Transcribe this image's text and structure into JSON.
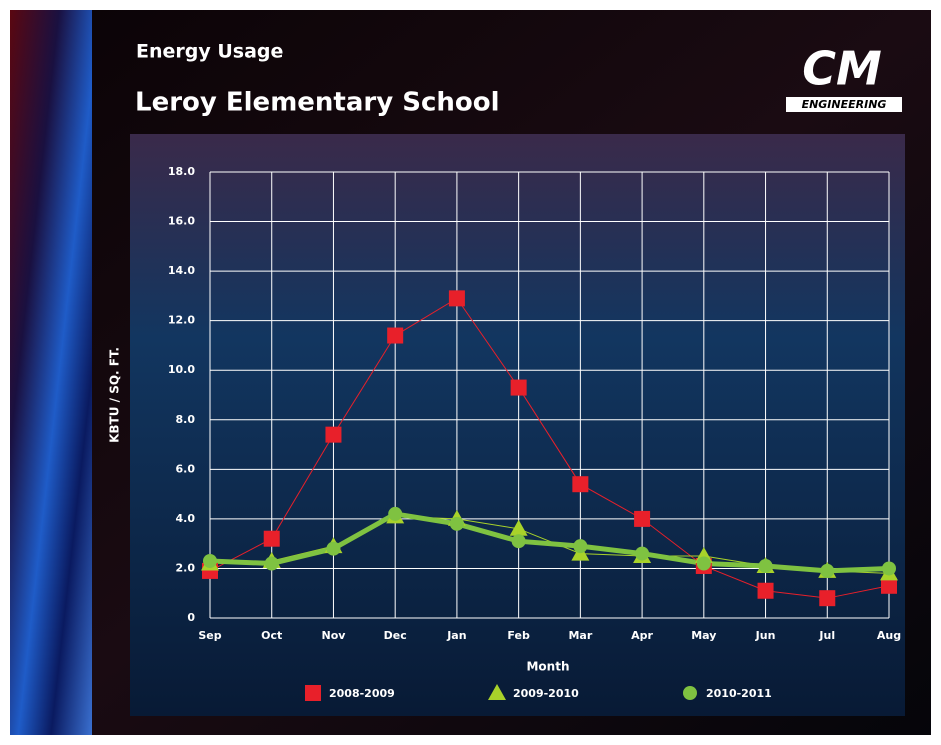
{
  "header": {
    "title": "Energy Usage",
    "subtitle": "Leroy Elementary School",
    "logo": {
      "mark": "CM",
      "text": "ENGINEERING"
    }
  },
  "chart_data": {
    "type": "line",
    "categories": [
      "Sep",
      "Oct",
      "Nov",
      "Dec",
      "Jan",
      "Feb",
      "Mar",
      "Apr",
      "May",
      "Jun",
      "Jul",
      "Aug"
    ],
    "x_label": "Month",
    "y_label": "KBTU / SQ. FT.",
    "ylim": [
      0,
      18
    ],
    "yticks": [
      0,
      {
        "value": 2,
        "label": "2.0"
      },
      {
        "value": 4,
        "label": "4.0"
      },
      {
        "value": 6,
        "label": "6.0"
      },
      {
        "value": 8,
        "label": "8.0"
      },
      {
        "value": 10,
        "label": "10.0"
      },
      {
        "value": 12,
        "label": "12.0"
      },
      {
        "value": 14,
        "label": "14.0"
      },
      {
        "value": 16,
        "label": "16.0"
      },
      {
        "value": 18,
        "label": "18.0"
      }
    ],
    "grid": true,
    "legend": "bottom",
    "series": [
      {
        "name": "2008-2009",
        "color": "#e8202a",
        "marker": "square",
        "line_width": 1,
        "values": [
          1.9,
          3.2,
          7.4,
          11.4,
          12.9,
          9.3,
          5.4,
          4.0,
          2.1,
          1.1,
          0.8,
          1.3
        ]
      },
      {
        "name": "2009-2010",
        "color": "#a8d22a",
        "marker": "triangle",
        "line_width": 1,
        "values": [
          2.2,
          2.3,
          2.9,
          4.1,
          4.0,
          3.6,
          2.6,
          2.5,
          2.5,
          2.1,
          1.9,
          1.8
        ]
      },
      {
        "name": "2010-2011",
        "color": "#7fc241",
        "marker": "circle",
        "line_width": 5,
        "values": [
          2.3,
          2.2,
          2.8,
          4.2,
          3.8,
          3.1,
          2.9,
          2.6,
          2.2,
          2.1,
          1.9,
          2.0
        ]
      }
    ]
  }
}
